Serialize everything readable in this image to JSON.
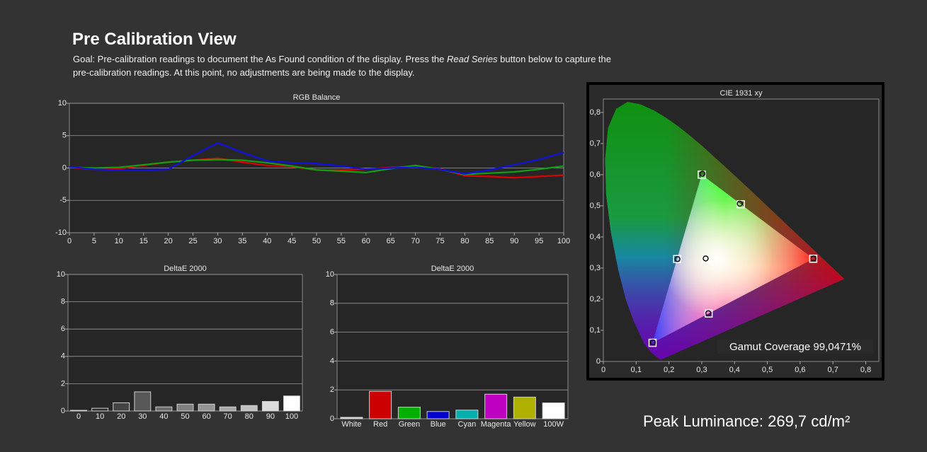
{
  "header": {
    "title": "Pre Calibration View",
    "goal": [
      "Goal: Pre-calibration readings to document the As Found condition of the display. Press the ",
      "Read Series",
      " button below to capture the pre-calibration readings. At this point, no adjustments are being made to the display."
    ]
  },
  "chart_data": [
    {
      "type": "line",
      "title": "RGB Balance",
      "x": [
        0,
        5,
        10,
        15,
        20,
        25,
        30,
        35,
        40,
        45,
        50,
        55,
        60,
        65,
        70,
        75,
        80,
        85,
        90,
        95,
        100
      ],
      "xlim": [
        0,
        100
      ],
      "xticks": [
        0,
        5,
        10,
        15,
        20,
        25,
        30,
        35,
        40,
        45,
        50,
        55,
        60,
        65,
        70,
        75,
        80,
        85,
        90,
        95,
        100
      ],
      "ylim": [
        -10,
        10
      ],
      "yticks": [
        -10,
        -5,
        0,
        5,
        10
      ],
      "grid": true,
      "series": [
        {
          "color": "#e00000",
          "values": [
            0.1,
            -0.2,
            -0.1,
            0.4,
            0.9,
            1.2,
            1.5,
            0.9,
            0.4,
            0.2,
            -0.3,
            -0.3,
            -0.2,
            0.1,
            0.2,
            -0.1,
            -1.2,
            -1.3,
            -1.5,
            -1.3,
            -1.1
          ]
        },
        {
          "color": "#10a010",
          "values": [
            0.1,
            0,
            0.1,
            0.5,
            0.9,
            1.2,
            1.3,
            1.2,
            0.8,
            0.3,
            -0.3,
            -0.5,
            -0.7,
            -0.1,
            0.4,
            -0.2,
            -1.0,
            -0.8,
            -0.6,
            -0.2,
            0.3
          ]
        },
        {
          "color": "#1010e0",
          "values": [
            0.2,
            -0.2,
            -0.3,
            -0.3,
            -0.2,
            1.9,
            3.9,
            2.4,
            1.1,
            0.8,
            0.7,
            0.3,
            -0.2,
            0,
            0.1,
            -0.2,
            -0.9,
            -0.3,
            0.5,
            1.3,
            2.4
          ]
        }
      ]
    },
    {
      "type": "bar",
      "title": "DeltaE 2000",
      "categories": [
        "0",
        "10",
        "20",
        "30",
        "40",
        "50",
        "60",
        "70",
        "80",
        "90",
        "100"
      ],
      "values": [
        0.05,
        0.2,
        0.6,
        1.4,
        0.3,
        0.5,
        0.5,
        0.3,
        0.4,
        0.7,
        1.1
      ],
      "colors": [
        "#1a1a1a",
        "#2e2e2e",
        "#444444",
        "#585858",
        "#6c6c6c",
        "#808080",
        "#949494",
        "#a8a8a8",
        "#c0c0c0",
        "#dcdcdc",
        "#ffffff"
      ],
      "ylim": [
        0,
        10
      ],
      "yticks": [
        0,
        2,
        4,
        6,
        8,
        10
      ],
      "grid": true
    },
    {
      "type": "bar",
      "title": "DeltaE 2000",
      "categories": [
        "White",
        "Red",
        "Green",
        "Blue",
        "Cyan",
        "Magenta",
        "Yellow",
        "100W"
      ],
      "values": [
        0.1,
        1.9,
        0.8,
        0.5,
        0.6,
        1.7,
        1.5,
        1.1
      ],
      "colors": [
        "#d8d8d8",
        "#cc0000",
        "#00b000",
        "#0000cc",
        "#00b0b0",
        "#c000c0",
        "#b0b000",
        "#ffffff"
      ],
      "ylim": [
        0,
        10
      ],
      "yticks": [
        0,
        2,
        4,
        6,
        8,
        10
      ],
      "grid": true
    },
    {
      "type": "scatter",
      "title": "CIE 1931 xy",
      "xlim": [
        0,
        0.84
      ],
      "ylim": [
        0,
        0.843
      ],
      "xticks": [
        0,
        {
          "value": 0.1,
          "label": "0,1"
        },
        {
          "value": 0.2,
          "label": "0,2"
        },
        {
          "value": 0.3,
          "label": "0,3"
        },
        {
          "value": 0.4,
          "label": "0,4"
        },
        {
          "value": 0.5,
          "label": "0,5"
        },
        {
          "value": 0.6,
          "label": "0,6"
        },
        {
          "value": 0.7,
          "label": "0,7"
        },
        {
          "value": 0.8,
          "label": "0,8"
        }
      ],
      "yticks": [
        0,
        {
          "value": 0.1,
          "label": "0,1"
        },
        {
          "value": 0.2,
          "label": "0,2"
        },
        {
          "value": 0.3,
          "label": "0,3"
        },
        {
          "value": 0.4,
          "label": "0,4"
        },
        {
          "value": 0.5,
          "label": "0,5"
        },
        {
          "value": 0.6,
          "label": "0,6"
        },
        {
          "value": 0.7,
          "label": "0,7"
        },
        {
          "value": 0.8,
          "label": "0,8"
        }
      ],
      "series": [
        {
          "marker": "square",
          "color": "#ffffff",
          "x": [
            0.64,
            0.3,
            0.15,
            0.3127,
            0.225,
            0.321,
            0.419
          ],
          "values": [
            0.33,
            0.6,
            0.06,
            0.329,
            0.329,
            0.154,
            0.505
          ]
        },
        {
          "marker": "circle",
          "color": "#111111",
          "x": [
            0.641,
            0.302,
            0.151,
            0.312,
            0.226,
            0.32,
            0.416
          ],
          "values": [
            0.331,
            0.603,
            0.061,
            0.331,
            0.329,
            0.155,
            0.507
          ]
        }
      ],
      "annotation": "Gamut Coverage 99,0471%"
    }
  ],
  "footer": {
    "peak_luminance": "Peak Luminance: 269,7 cd/m²"
  }
}
